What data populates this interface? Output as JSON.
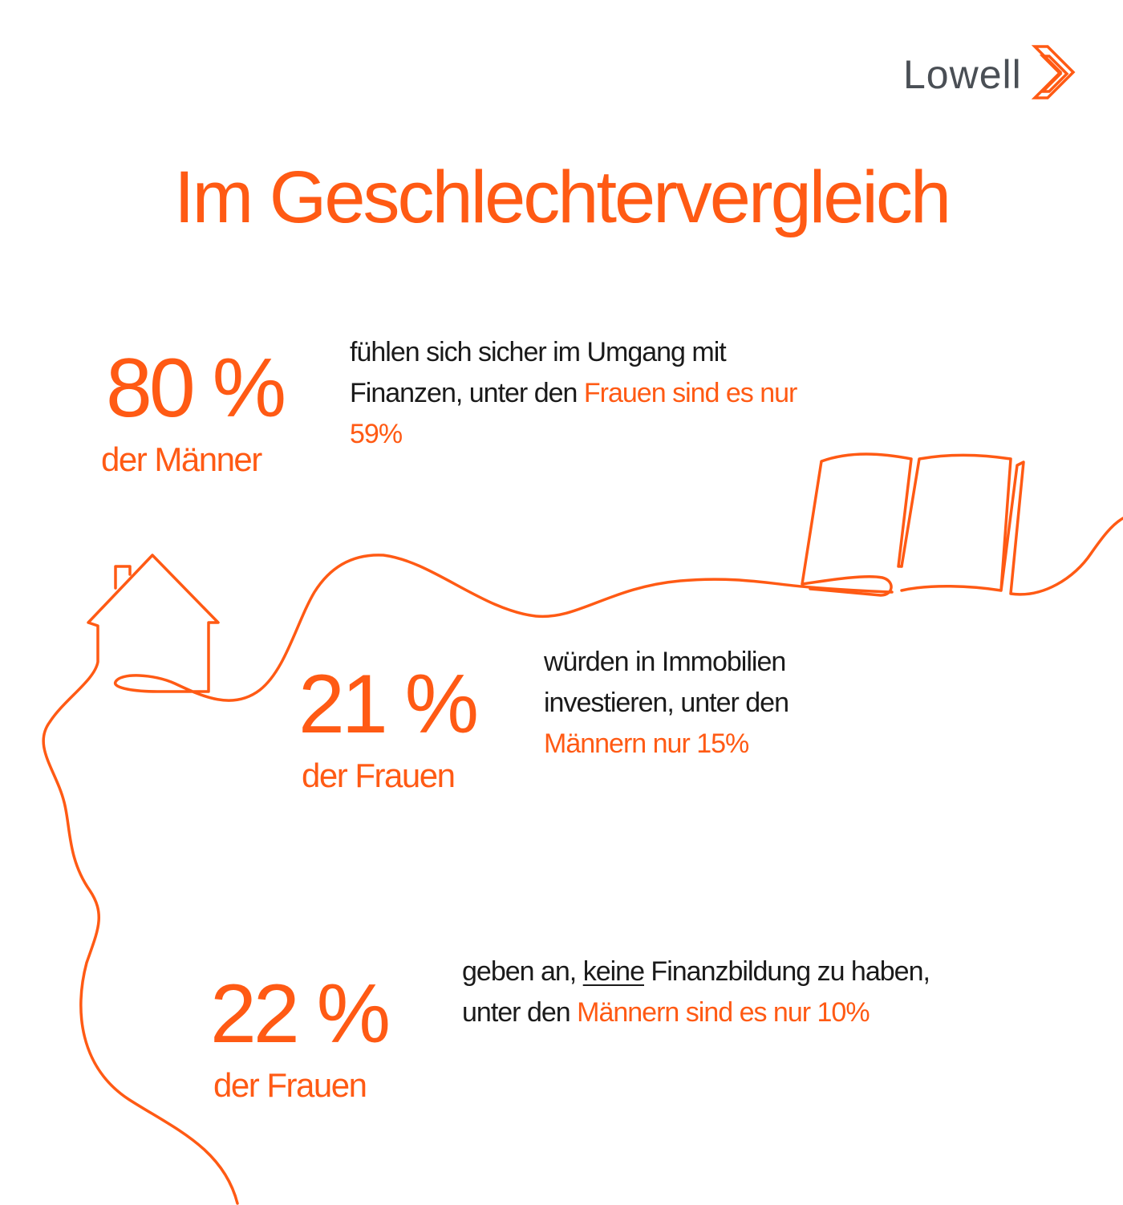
{
  "brand": {
    "name": "Lowell",
    "logo_icon": "double-chevron-right-icon",
    "colors": {
      "accent": "#ff5a14",
      "text": "#1a1a1a",
      "logo_text": "#4a4f55"
    }
  },
  "title": "Im Geschlechtervergleich",
  "illustrations": [
    "house-icon",
    "open-book-icon",
    "wavy-line"
  ],
  "stats": [
    {
      "value": "80 %",
      "label": "der Männer",
      "text_before": "fühlen sich sicher im Umgang mit Finanzen, unter den ",
      "text_highlight": "Frauen sind es nur 59%"
    },
    {
      "value": "21 %",
      "label": "der Frauen",
      "text_before": "würden in Immobilien investieren, unter den ",
      "text_highlight": "Männern nur 15%"
    },
    {
      "value": "22 %",
      "label": "der Frauen",
      "text_before_1": "geben an, ",
      "text_underlined": "keine",
      "text_before_2": " Finanzbildung zu haben, unter den ",
      "text_highlight": "Männern sind es nur 10%"
    }
  ]
}
